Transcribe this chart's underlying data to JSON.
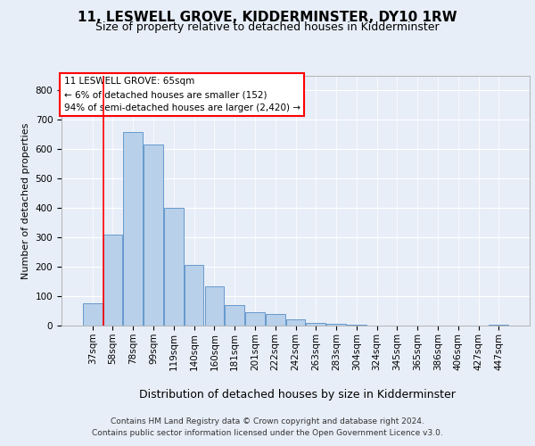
{
  "title": "11, LESWELL GROVE, KIDDERMINSTER, DY10 1RW",
  "subtitle": "Size of property relative to detached houses in Kidderminster",
  "xlabel": "Distribution of detached houses by size in Kidderminster",
  "ylabel": "Number of detached properties",
  "footer_line1": "Contains HM Land Registry data © Crown copyright and database right 2024.",
  "footer_line2": "Contains public sector information licensed under the Open Government Licence v3.0.",
  "bar_labels": [
    "37sqm",
    "58sqm",
    "78sqm",
    "99sqm",
    "119sqm",
    "140sqm",
    "160sqm",
    "181sqm",
    "201sqm",
    "222sqm",
    "242sqm",
    "263sqm",
    "283sqm",
    "304sqm",
    "324sqm",
    "345sqm",
    "365sqm",
    "386sqm",
    "406sqm",
    "427sqm",
    "447sqm"
  ],
  "bar_values": [
    75,
    310,
    660,
    615,
    400,
    205,
    135,
    70,
    47,
    38,
    20,
    10,
    5,
    2,
    0,
    0,
    0,
    0,
    0,
    0,
    4
  ],
  "bar_color": "#b8d0ea",
  "bar_edge_color": "#6699cc",
  "annotation_box_text": "11 LESWELL GROVE: 65sqm\n← 6% of detached houses are smaller (152)\n94% of semi-detached houses are larger (2,420) →",
  "ylim": [
    0,
    850
  ],
  "yticks": [
    0,
    100,
    200,
    300,
    400,
    500,
    600,
    700,
    800
  ],
  "background_color": "#e8eef8",
  "plot_background": "#e8eef8",
  "grid_color": "#ffffff",
  "title_fontsize": 11,
  "subtitle_fontsize": 9,
  "xlabel_fontsize": 9,
  "ylabel_fontsize": 8,
  "tick_fontsize": 7.5,
  "annotation_fontsize": 7.5,
  "footer_fontsize": 6.5
}
